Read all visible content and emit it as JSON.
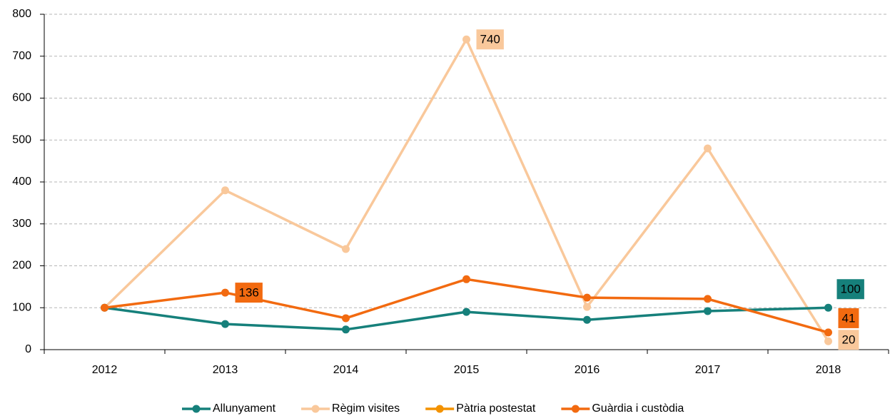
{
  "chart_data": {
    "type": "line",
    "categories": [
      "2012",
      "2013",
      "2014",
      "2015",
      "2016",
      "2017",
      "2018"
    ],
    "series": [
      {
        "name": "Allunyament",
        "color": "#16807b",
        "values": [
          100,
          61,
          48,
          90,
          71,
          92,
          100
        ],
        "value_labels": [
          null,
          null,
          null,
          null,
          null,
          null,
          "100"
        ]
      },
      {
        "name": "Règim visites",
        "color": "#f9c89b",
        "values": [
          100,
          380,
          240,
          740,
          102,
          480,
          20
        ],
        "value_labels": [
          null,
          null,
          null,
          "740",
          null,
          null,
          "20"
        ]
      },
      {
        "name": "Pàtria postestat",
        "color": "#f39200",
        "values": [
          null,
          null,
          null,
          null,
          null,
          null,
          null
        ]
      },
      {
        "name": "Guàrdia i custòdia",
        "color": "#f26a10",
        "values": [
          100,
          136,
          75,
          168,
          124,
          121,
          41
        ],
        "value_labels": [
          null,
          "136",
          null,
          null,
          null,
          null,
          "41"
        ]
      }
    ],
    "ylim": [
      0,
      800
    ],
    "yticks": [
      0,
      100,
      200,
      300,
      400,
      500,
      600,
      700,
      800
    ],
    "grid": true,
    "legend": "bottom"
  }
}
